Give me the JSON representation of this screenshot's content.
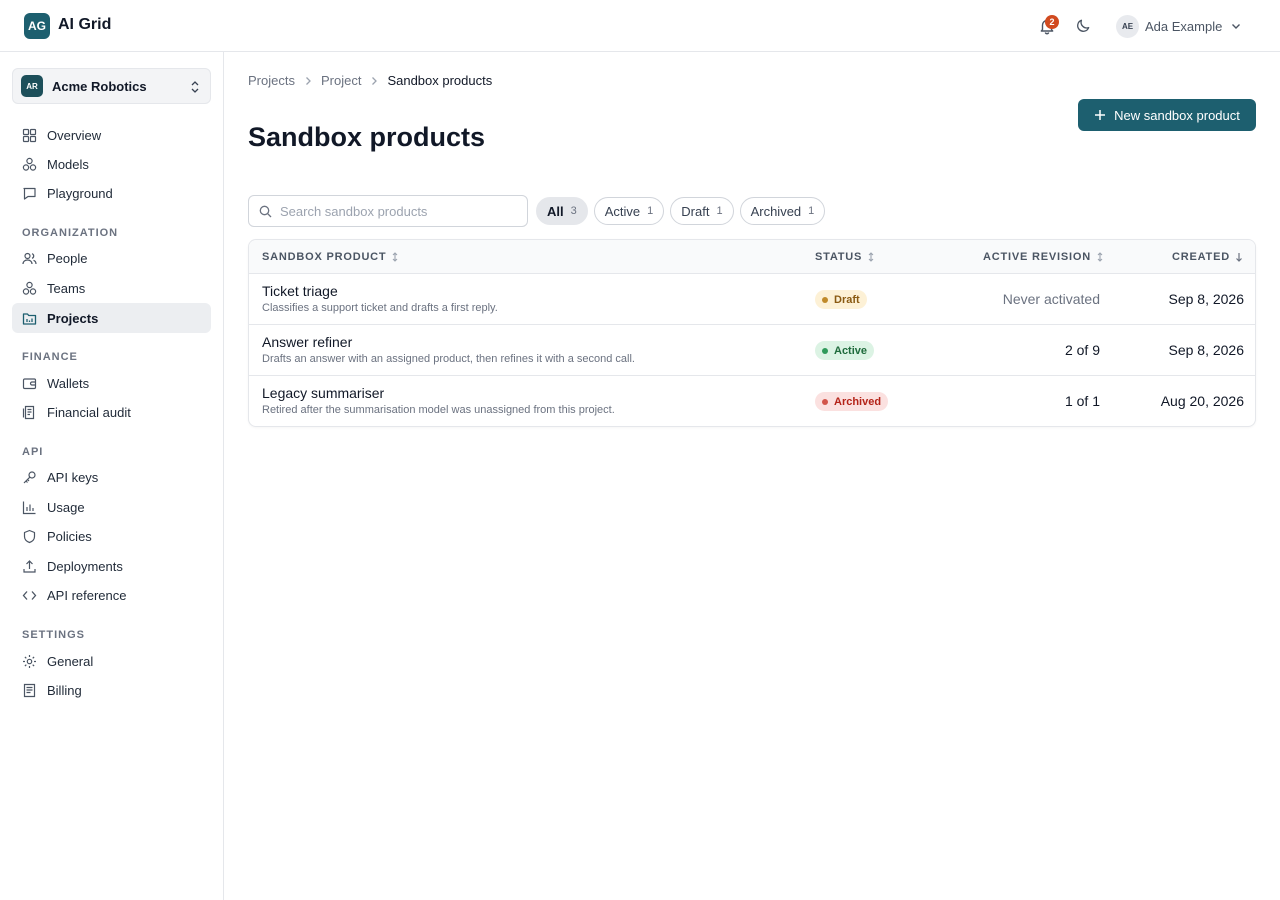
{
  "header": {
    "logo_text": "AG",
    "app_title": "AI Grid",
    "notification_count": "2",
    "user": {
      "initials": "AE",
      "name": "Ada Example"
    }
  },
  "sidebar": {
    "org": {
      "initials": "AR",
      "name": "Acme Robotics"
    },
    "items_top": [
      {
        "label": "Overview",
        "icon": "grid-icon"
      },
      {
        "label": "Models",
        "icon": "models-icon"
      },
      {
        "label": "Playground",
        "icon": "chat-icon"
      }
    ],
    "sections": [
      {
        "title": "ORGANIZATION",
        "items": [
          {
            "label": "People",
            "icon": "people-icon"
          },
          {
            "label": "Teams",
            "icon": "teams-icon"
          },
          {
            "label": "Projects",
            "icon": "projects-icon",
            "active": true
          }
        ]
      },
      {
        "title": "FINANCE",
        "items": [
          {
            "label": "Wallets",
            "icon": "wallet-icon"
          },
          {
            "label": "Financial audit",
            "icon": "audit-icon"
          }
        ]
      },
      {
        "title": "API",
        "items": [
          {
            "label": "API keys",
            "icon": "key-icon"
          },
          {
            "label": "Usage",
            "icon": "bar-chart-icon"
          },
          {
            "label": "Policies",
            "icon": "shield-icon"
          },
          {
            "label": "Deployments",
            "icon": "upload-icon"
          },
          {
            "label": "API reference",
            "icon": "code-icon"
          }
        ]
      },
      {
        "title": "SETTINGS",
        "items": [
          {
            "label": "General",
            "icon": "gear-icon"
          },
          {
            "label": "Billing",
            "icon": "receipt-icon"
          }
        ]
      }
    ]
  },
  "breadcrumb": [
    "Projects",
    "Project",
    "Sandbox products"
  ],
  "page": {
    "title": "Sandbox products",
    "new_button_label": "New sandbox product",
    "search_placeholder": "Search sandbox products"
  },
  "filters": [
    {
      "label": "All",
      "count": "3",
      "selected": true
    },
    {
      "label": "Active",
      "count": "1"
    },
    {
      "label": "Draft",
      "count": "1"
    },
    {
      "label": "Archived",
      "count": "1"
    }
  ],
  "table": {
    "columns": {
      "product": "SANDBOX PRODUCT",
      "status": "STATUS",
      "revision": "ACTIVE REVISION",
      "created": "CREATED"
    },
    "rows": [
      {
        "name": "Ticket triage",
        "description": "Classifies a support ticket and drafts a first reply.",
        "status": "Draft",
        "revision": "Never activated",
        "created": "Sep 8, 2026"
      },
      {
        "name": "Answer refiner",
        "description": "Drafts an answer with an assigned product, then refines it with a second call.",
        "status": "Active",
        "revision": "2 of 9",
        "created": "Sep 8, 2026"
      },
      {
        "name": "Legacy summariser",
        "description": "Retired after the summarisation model was unassigned from this project.",
        "status": "Archived",
        "revision": "1 of 1",
        "created": "Aug 20, 2026"
      }
    ]
  },
  "colors": {
    "brand": "#1d5f6f",
    "notification_badge": "#d14a1f",
    "status_draft": "#c08a2a",
    "status_active": "#2f9a5a",
    "status_archived": "#d2554a"
  }
}
